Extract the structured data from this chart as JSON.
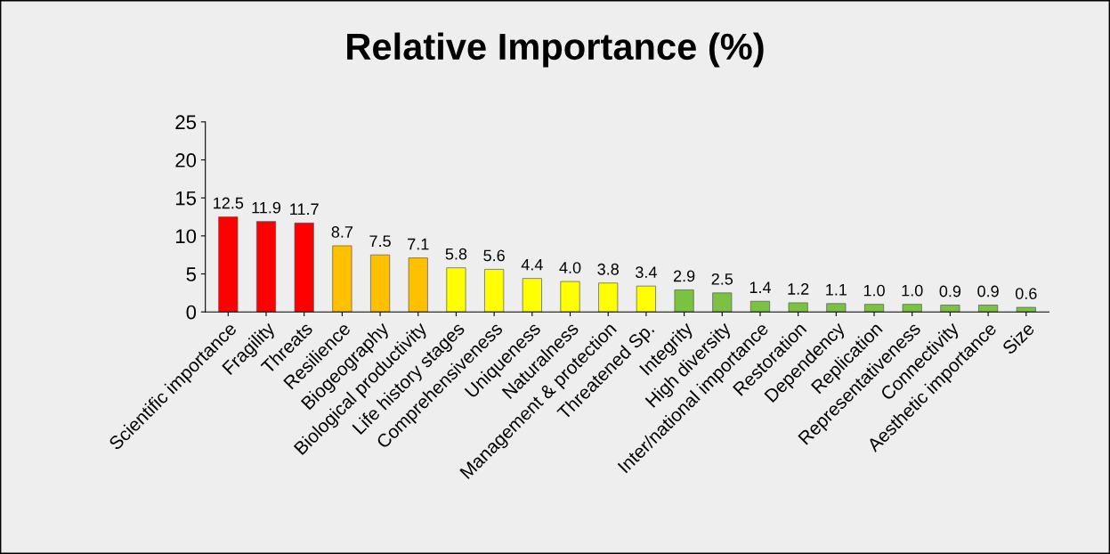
{
  "chart_data": {
    "type": "bar",
    "title": "Relative Importance (%)",
    "categories": [
      "Scientific importance",
      "Fragility",
      "Threats",
      "Resilience",
      "Biogeography",
      "Biological productivity",
      "Life history stages",
      "Comprehensiveness",
      "Uniqueness",
      "Naturalness",
      "Management & protection",
      "Threatened Sp.",
      "Integrity",
      "High diversity",
      "Inter/national importance",
      "Restoration",
      "Dependency",
      "Replication",
      "Representativeness",
      "Connectivity",
      "Aesthetic importance",
      "Size"
    ],
    "values": [
      12.5,
      11.9,
      11.7,
      8.7,
      7.5,
      7.1,
      5.8,
      5.6,
      4.4,
      4.0,
      3.8,
      3.4,
      2.9,
      2.5,
      1.4,
      1.2,
      1.1,
      1.0,
      1.0,
      0.9,
      0.9,
      0.6
    ],
    "colors": [
      "#ff0000",
      "#ff0000",
      "#ff0000",
      "#ffc000",
      "#ffc000",
      "#ffc000",
      "#ffff00",
      "#ffff00",
      "#ffff00",
      "#ffff00",
      "#ffff00",
      "#ffff00",
      "#7cc242",
      "#7cc242",
      "#7cc242",
      "#7cc242",
      "#7cc242",
      "#7cc242",
      "#7cc242",
      "#7cc242",
      "#7cc242",
      "#7cc242"
    ],
    "ylim": [
      0,
      25
    ],
    "yticks": [
      0,
      5,
      10,
      15,
      20,
      25
    ],
    "value_labels": [
      "12.5",
      "11.9",
      "11.7",
      "8.7",
      "7.5",
      "7.1",
      "5.8",
      "5.6",
      "4.4",
      "4.0",
      "3.8",
      "3.4",
      "2.9",
      "2.5",
      "1.4",
      "1.2",
      "1.1",
      "1.0",
      "1.0",
      "0.9",
      "0.9",
      "0.6"
    ],
    "grid": false,
    "legend": false
  }
}
